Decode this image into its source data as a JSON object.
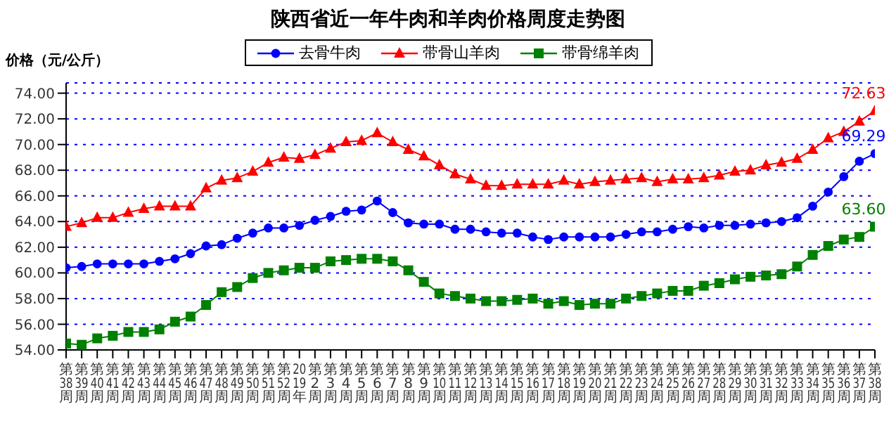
{
  "chart_data": {
    "type": "line",
    "title": "陕西省近一年牛肉和羊肉价格周度走势图",
    "ylabel": "价格（元/公斤）",
    "categories": [
      "第38周",
      "第39周",
      "第40周",
      "第41周",
      "第42周",
      "第43周",
      "第44周",
      "第45周",
      "第46周",
      "第47周",
      "第48周",
      "第49周",
      "第50周",
      "第51周",
      "第52周",
      "2019年",
      "第2周",
      "第3周",
      "第4周",
      "第5周",
      "第6周",
      "第7周",
      "第8周",
      "第9周",
      "第10周",
      "第11周",
      "第12周",
      "第13周",
      "第14周",
      "第15周",
      "第16周",
      "第17周",
      "第18周",
      "第19周",
      "第20周",
      "第21周",
      "第22周",
      "第23周",
      "第24周",
      "第25周",
      "第26周",
      "第27周",
      "第28周",
      "第29周",
      "第30周",
      "第31周",
      "第32周",
      "第33周",
      "第34周",
      "第35周",
      "第36周",
      "第37周",
      "第38周"
    ],
    "series": [
      {
        "name": "去骨牛肉",
        "color": "#0000ff",
        "marker": "circle",
        "values": [
          60.4,
          60.5,
          60.7,
          60.7,
          60.7,
          60.7,
          60.9,
          61.1,
          61.5,
          62.1,
          62.2,
          62.7,
          63.1,
          63.5,
          63.5,
          63.7,
          64.1,
          64.4,
          64.8,
          64.9,
          65.6,
          64.7,
          63.9,
          63.8,
          63.8,
          63.4,
          63.4,
          63.2,
          63.1,
          63.1,
          62.8,
          62.6,
          62.8,
          62.8,
          62.8,
          62.8,
          63.0,
          63.2,
          63.2,
          63.4,
          63.6,
          63.5,
          63.7,
          63.7,
          63.8,
          63.9,
          64.0,
          64.3,
          65.2,
          66.3,
          67.5,
          68.7,
          69.29
        ],
        "value_labels": [
          null,
          null,
          null,
          null,
          null,
          null,
          null,
          null,
          null,
          null,
          null,
          null,
          null,
          null,
          null,
          null,
          null,
          null,
          null,
          null,
          null,
          null,
          null,
          null,
          null,
          null,
          null,
          null,
          null,
          null,
          null,
          null,
          null,
          null,
          null,
          null,
          null,
          null,
          null,
          null,
          null,
          null,
          null,
          null,
          null,
          null,
          null,
          null,
          null,
          null,
          null,
          null,
          "69.29"
        ]
      },
      {
        "name": "带骨山羊肉",
        "color": "#ff0000",
        "marker": "triangle",
        "values": [
          63.6,
          63.9,
          64.3,
          64.3,
          64.7,
          65.0,
          65.2,
          65.2,
          65.2,
          66.6,
          67.2,
          67.4,
          67.9,
          68.6,
          69.0,
          68.9,
          69.2,
          69.7,
          70.2,
          70.3,
          70.9,
          70.2,
          69.6,
          69.1,
          68.4,
          67.7,
          67.3,
          66.8,
          66.8,
          66.9,
          66.9,
          66.9,
          67.2,
          66.9,
          67.1,
          67.2,
          67.3,
          67.4,
          67.1,
          67.3,
          67.3,
          67.4,
          67.6,
          67.9,
          68.0,
          68.4,
          68.6,
          68.9,
          69.6,
          70.5,
          71.0,
          71.8,
          72.63
        ],
        "value_labels": [
          null,
          null,
          null,
          null,
          null,
          null,
          null,
          null,
          null,
          null,
          null,
          null,
          null,
          null,
          null,
          null,
          null,
          null,
          null,
          null,
          null,
          null,
          null,
          null,
          null,
          null,
          null,
          null,
          null,
          null,
          null,
          null,
          null,
          null,
          null,
          null,
          null,
          null,
          null,
          null,
          null,
          null,
          null,
          null,
          null,
          null,
          null,
          null,
          null,
          null,
          null,
          null,
          "72.63"
        ]
      },
      {
        "name": "带骨绵羊肉",
        "color": "#008000",
        "marker": "square",
        "values": [
          54.5,
          54.4,
          54.9,
          55.1,
          55.4,
          55.4,
          55.6,
          56.2,
          56.6,
          57.5,
          58.5,
          58.9,
          59.6,
          60.0,
          60.2,
          60.4,
          60.4,
          60.9,
          61.0,
          61.1,
          61.1,
          60.9,
          60.2,
          59.3,
          58.4,
          58.2,
          58.0,
          57.8,
          57.8,
          57.9,
          58.0,
          57.6,
          57.8,
          57.5,
          57.6,
          57.6,
          58.0,
          58.2,
          58.4,
          58.6,
          58.6,
          59.0,
          59.2,
          59.5,
          59.7,
          59.8,
          59.9,
          60.5,
          61.4,
          62.1,
          62.6,
          62.8,
          63.6
        ],
        "value_labels": [
          null,
          null,
          null,
          null,
          null,
          null,
          null,
          null,
          null,
          null,
          null,
          null,
          null,
          null,
          null,
          null,
          null,
          null,
          null,
          null,
          null,
          null,
          null,
          null,
          null,
          null,
          null,
          null,
          null,
          null,
          null,
          null,
          null,
          null,
          null,
          null,
          null,
          null,
          null,
          null,
          null,
          null,
          null,
          null,
          null,
          null,
          null,
          null,
          null,
          null,
          null,
          null,
          "63.60"
        ]
      }
    ],
    "ylim": [
      54,
      74.8
    ],
    "yticks": [
      {
        "value": 54,
        "label": "54.00"
      },
      {
        "value": 56,
        "label": "56.00"
      },
      {
        "value": 58,
        "label": "58.00"
      },
      {
        "value": 60,
        "label": "60.00"
      },
      {
        "value": 62,
        "label": "62.00"
      },
      {
        "value": 64,
        "label": "64.00"
      },
      {
        "value": 66,
        "label": "66.00"
      },
      {
        "value": 68,
        "label": "68.00"
      },
      {
        "value": 70,
        "label": "70.00"
      },
      {
        "value": 72,
        "label": "72.00"
      },
      {
        "value": 74,
        "label": "74.00"
      }
    ],
    "grid": "y",
    "legend": "top",
    "line_style": "solid"
  }
}
